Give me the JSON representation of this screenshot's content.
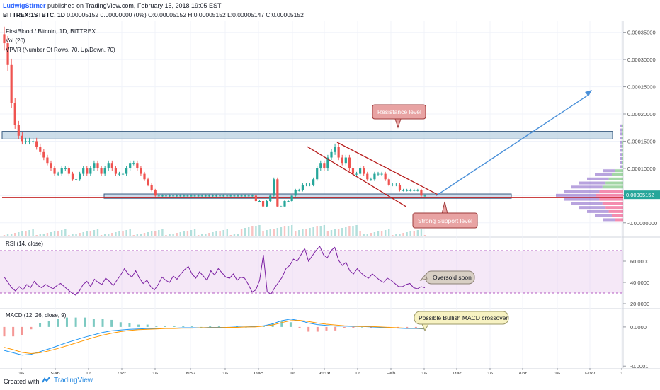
{
  "header": {
    "author": "LudwigStirner",
    "published": "published on TradingView.com, February 15, 2018 19:05 EST",
    "symbol": "BITTREX:1STBTC, 1D",
    "ohlc": "0.00005152 0.00000000 (0%) O:0.00005152 H:0.00005152 L:0.00005147 C:0.00005152"
  },
  "legend": {
    "title": "FirstBlood / Bitcoin, 1D, BITTREX",
    "vol": "Vol (20)",
    "vpvr": "VPVR (Number Of Rows, 70, Up/Down, 70)",
    "rsi": "RSI (14, close)",
    "macd": "MACD (12, 26, close, 9)"
  },
  "footer": {
    "created_with": "Created with",
    "brand": "TradingView"
  },
  "colors": {
    "up": "#26a69a",
    "down": "#ef5350",
    "rsi_line": "#7b1fa2",
    "macd_line": "#2196f3",
    "signal_line": "#ff9800",
    "annotation": "#c95c5c",
    "projection": "#4a90d9"
  },
  "annotations": {
    "resistance": "Resistance level",
    "support": "Strong Support level",
    "oversold": "Oversold soon",
    "macd_cross": "Possible Bullish MACD crossover"
  },
  "chart_data": [
    {
      "type": "candlestick",
      "title": "FirstBlood / Bitcoin, 1D, BITTREX",
      "x_ticks": [
        "16",
        "Sep",
        "16",
        "Oct",
        "16",
        "Nov",
        "16",
        "Dec",
        "16",
        "2018",
        "16",
        "Feb",
        "16",
        "Mar",
        "16",
        "Apr",
        "16",
        "May",
        "1"
      ],
      "y_ticks": [
        "0.00035000",
        "0.00030000",
        "0.00025000",
        "0.00020000",
        "0.00015000",
        "0.00010000",
        "0.00005000",
        "-0.00000000"
      ],
      "ylim": [
        -1.2e-05,
        0.00036
      ],
      "last_price": "0.00005152",
      "close": [
        0.00033,
        0.00029,
        0.00022,
        0.00018,
        0.00016,
        0.00015,
        0.00015,
        0.00015,
        0.00015,
        0.00014,
        0.00013,
        0.00012,
        0.00011,
        0.0001,
        9e-05,
        9e-05,
        0.0001,
        0.0001,
        9e-05,
        8e-05,
        8e-05,
        9e-05,
        0.0001,
        9e-05,
        0.0001,
        0.00011,
        0.0001,
        9e-05,
        0.0001,
        0.00011,
        0.0001,
        9e-05,
        9e-05,
        9e-05,
        0.0001,
        0.00011,
        0.00011,
        0.0001,
        9e-05,
        8e-05,
        7e-05,
        6e-05,
        5e-05,
        5e-05,
        5e-05,
        5e-05,
        5e-05,
        5e-05,
        5e-05,
        5e-05,
        5e-05,
        5e-05,
        5e-05,
        5e-05,
        5e-05,
        5e-05,
        5e-05,
        5e-05,
        5e-05,
        5e-05,
        5e-05,
        5e-05,
        5e-05,
        5e-05,
        5e-05,
        5e-05,
        5e-05,
        5e-05,
        5e-05,
        5e-05,
        4e-05,
        4e-05,
        3e-05,
        4e-05,
        5e-05,
        8e-05,
        3e-05,
        3e-05,
        4e-05,
        4e-05,
        5e-05,
        6e-05,
        6e-05,
        7e-05,
        7e-05,
        7e-05,
        8e-05,
        0.0001,
        0.00011,
        0.0001,
        0.00012,
        0.00013,
        0.00014,
        0.00012,
        0.00011,
        0.00012,
        0.0001,
        9e-05,
        9e-05,
        0.0001,
        9e-05,
        8e-05,
        8e-05,
        9e-05,
        9e-05,
        9e-05,
        8e-05,
        7e-05,
        7e-05,
        7e-05,
        6e-05,
        6e-05,
        6e-05,
        6e-05,
        6e-05,
        6e-05,
        5e-05,
        5e-05
      ]
    },
    {
      "type": "line",
      "name": "RSI (14, close)",
      "y_ticks": [
        "60.0000",
        "40.0000",
        "20.0000"
      ],
      "ylim": [
        16,
        82
      ],
      "bands": [
        30,
        70
      ],
      "values": [
        45,
        40,
        35,
        32,
        36,
        33,
        38,
        35,
        41,
        37,
        35,
        38,
        36,
        34,
        37,
        39,
        36,
        33,
        30,
        28,
        32,
        38,
        41,
        36,
        43,
        40,
        38,
        44,
        41,
        37,
        42,
        47,
        53,
        48,
        45,
        51,
        44,
        39,
        42,
        36,
        33,
        38,
        45,
        42,
        40,
        46,
        43,
        48,
        52,
        55,
        48,
        44,
        50,
        46,
        42,
        51,
        47,
        53,
        49,
        45,
        44,
        48,
        42,
        45,
        44,
        38,
        31,
        33,
        42,
        66,
        31,
        29,
        35,
        40,
        45,
        53,
        56,
        62,
        60,
        66,
        72,
        60,
        65,
        70,
        74,
        66,
        63,
        70,
        73,
        61,
        56,
        59,
        51,
        48,
        53,
        49,
        46,
        44,
        48,
        45,
        42,
        40,
        44,
        42,
        39,
        36,
        36,
        38,
        39,
        35,
        34,
        36,
        35
      ]
    },
    {
      "type": "line",
      "name": "MACD (12, 26, close, 9)",
      "y_ticks": [
        "0.0000",
        "-0.0001"
      ],
      "ylim": [
        -0.000105,
        4.5e-05
      ],
      "series": [
        {
          "values": [
            -6e-05,
            -6.6e-05,
            -7.2e-05,
            -7e-05,
            -6.3e-05,
            -5.6e-05,
            -4.8e-05,
            -4e-05,
            -3.3e-05,
            -2.6e-05,
            -2e-05,
            -1.4e-05,
            -1e-05,
            -8e-06,
            -6e-06,
            -5e-06,
            -4e-06,
            -4e-06,
            -3e-06,
            -3e-06,
            -2e-06,
            -2e-06,
            -2e-06,
            -1e-06,
            -1e-06,
            -1e-06,
            0.0,
            0.0,
            1e-06,
            3e-06,
            8e-06,
            1.6e-05,
            2e-05,
            1.6e-05,
            1e-05,
            6e-06,
            4e-06,
            2e-06,
            2e-06,
            1e-06,
            1e-06,
            0.0,
            -1e-06,
            -2e-06,
            -3e-06,
            -4e-06,
            -4e-06,
            -5e-06
          ]
        },
        {
          "values": [
            -5.2e-05,
            -5.8e-05,
            -6.5e-05,
            -6.8e-05,
            -6.6e-05,
            -6.1e-05,
            -5.5e-05,
            -4.8e-05,
            -4.1e-05,
            -3.4e-05,
            -2.7e-05,
            -2.1e-05,
            -1.6e-05,
            -1.2e-05,
            -9e-06,
            -7e-06,
            -6e-06,
            -5e-06,
            -4e-06,
            -4e-06,
            -3e-06,
            -3e-06,
            -2e-06,
            -2e-06,
            -2e-06,
            -1e-06,
            -1e-06,
            0.0,
            0.0,
            2e-06,
            5e-06,
            1.1e-05,
            1.6e-05,
            1.7e-05,
            1.4e-05,
            1e-05,
            7e-06,
            5e-06,
            3e-06,
            2e-06,
            1e-06,
            1e-06,
            0.0,
            -1e-06,
            -2e-06,
            -3e-06,
            -3e-06,
            -4e-06
          ]
        }
      ]
    }
  ]
}
